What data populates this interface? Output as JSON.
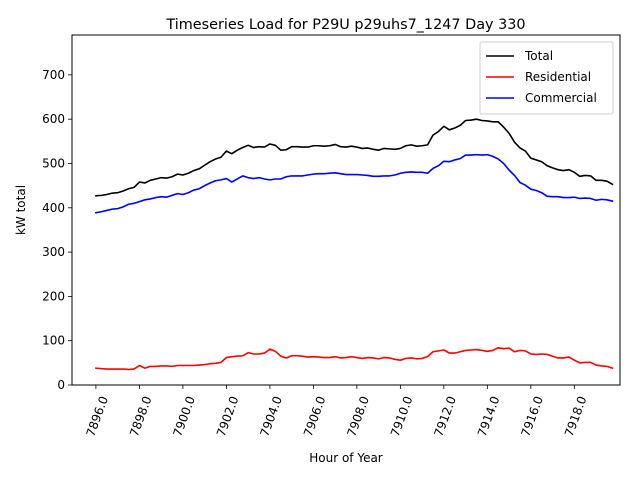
{
  "chart_data": {
    "type": "line",
    "title": "Timeseries Load for P29U p29uhs7_1247  Day 330",
    "xlabel": "Hour of Year",
    "ylabel": "kW total",
    "xlim": [
      7894.9,
      7920.1
    ],
    "ylim": [
      0,
      790
    ],
    "xticks": [
      7896,
      7898,
      7900,
      7902,
      7904,
      7906,
      7908,
      7910,
      7912,
      7914,
      7916,
      7918
    ],
    "xtick_labels": [
      "7896.0",
      "7898.0",
      "7900.0",
      "7902.0",
      "7904.0",
      "7906.0",
      "7908.0",
      "7910.0",
      "7912.0",
      "7914.0",
      "7916.0",
      "7918.0"
    ],
    "yticks": [
      0,
      100,
      200,
      300,
      400,
      500,
      600,
      700
    ],
    "ytick_labels": [
      "0",
      "100",
      "200",
      "300",
      "400",
      "500",
      "600",
      "700"
    ],
    "legend_position": "upper-right",
    "x": [
      7896.0,
      7896.25,
      7896.5,
      7896.75,
      7897.0,
      7897.25,
      7897.5,
      7897.75,
      7898.0,
      7898.25,
      7898.5,
      7898.75,
      7899.0,
      7899.25,
      7899.5,
      7899.75,
      7900.0,
      7900.25,
      7900.5,
      7900.75,
      7901.0,
      7901.25,
      7901.5,
      7901.75,
      7902.0,
      7902.25,
      7902.5,
      7902.75,
      7903.0,
      7903.25,
      7903.5,
      7903.75,
      7904.0,
      7904.25,
      7904.5,
      7904.75,
      7905.0,
      7905.25,
      7905.5,
      7905.75,
      7906.0,
      7906.25,
      7906.5,
      7906.75,
      7907.0,
      7907.25,
      7907.5,
      7907.75,
      7908.0,
      7908.25,
      7908.5,
      7908.75,
      7909.0,
      7909.25,
      7909.5,
      7909.75,
      7910.0,
      7910.25,
      7910.5,
      7910.75,
      7911.0,
      7911.25,
      7911.5,
      7911.75,
      7912.0,
      7912.25,
      7912.5,
      7912.75,
      7913.0,
      7913.25,
      7913.5,
      7913.75,
      7914.0,
      7914.25,
      7914.5,
      7914.75,
      7915.0,
      7915.25,
      7915.5,
      7915.75,
      7916.0,
      7916.25,
      7916.5,
      7916.75,
      7917.0,
      7917.25,
      7917.5,
      7917.75,
      7918.0,
      7918.25,
      7918.5,
      7918.75,
      7919.0,
      7919.25,
      7919.5,
      7919.75
    ],
    "series": [
      {
        "name": "Total",
        "color": "#000000",
        "values": [
          427,
          428,
          430,
          433,
          434,
          438,
          443,
          446,
          458,
          456,
          462,
          465,
          468,
          467,
          470,
          476,
          474,
          478,
          484,
          488,
          496,
          504,
          510,
          514,
          528,
          522,
          530,
          536,
          541,
          536,
          538,
          537,
          544,
          541,
          530,
          531,
          538,
          538,
          537,
          537,
          540,
          540,
          539,
          540,
          543,
          538,
          537,
          539,
          537,
          534,
          535,
          532,
          530,
          534,
          533,
          532,
          534,
          540,
          542,
          539,
          540,
          542,
          564,
          572,
          584,
          576,
          580,
          586,
          597,
          598,
          600,
          597,
          596,
          594,
          594,
          582,
          568,
          548,
          535,
          528,
          512,
          508,
          504,
          495,
          490,
          486,
          484,
          486,
          480,
          471,
          473,
          472,
          462,
          462,
          460,
          453
        ]
      },
      {
        "name": "Residential",
        "color": "#ff0000",
        "values": [
          38,
          37,
          36,
          36,
          36,
          36,
          35,
          36,
          44,
          38,
          42,
          42,
          43,
          43,
          42,
          44,
          44,
          44,
          44,
          45,
          46,
          48,
          49,
          51,
          62,
          64,
          65,
          66,
          73,
          70,
          70,
          72,
          81,
          76,
          65,
          61,
          66,
          66,
          65,
          63,
          64,
          63,
          62,
          62,
          64,
          61,
          62,
          64,
          62,
          60,
          62,
          61,
          59,
          62,
          61,
          58,
          56,
          60,
          61,
          59,
          60,
          64,
          75,
          77,
          79,
          72,
          72,
          75,
          78,
          79,
          80,
          78,
          76,
          78,
          84,
          82,
          83,
          75,
          78,
          77,
          70,
          69,
          70,
          69,
          65,
          61,
          61,
          63,
          56,
          50,
          51,
          51,
          45,
          43,
          42,
          38
        ]
      },
      {
        "name": "Commercial",
        "color": "#0000ff",
        "values": [
          389,
          391,
          394,
          397,
          398,
          402,
          408,
          410,
          414,
          418,
          420,
          423,
          425,
          424,
          428,
          432,
          430,
          434,
          440,
          443,
          450,
          456,
          461,
          463,
          466,
          458,
          465,
          472,
          468,
          466,
          468,
          465,
          463,
          465,
          465,
          470,
          472,
          472,
          472,
          474,
          476,
          477,
          477,
          478,
          479,
          477,
          475,
          475,
          475,
          474,
          473,
          471,
          471,
          472,
          472,
          474,
          478,
          480,
          481,
          480,
          480,
          478,
          489,
          495,
          505,
          504,
          508,
          511,
          519,
          519,
          520,
          519,
          520,
          516,
          510,
          500,
          485,
          473,
          457,
          451,
          442,
          439,
          434,
          426,
          425,
          425,
          423,
          423,
          424,
          421,
          422,
          421,
          417,
          419,
          418,
          415
        ]
      }
    ]
  }
}
